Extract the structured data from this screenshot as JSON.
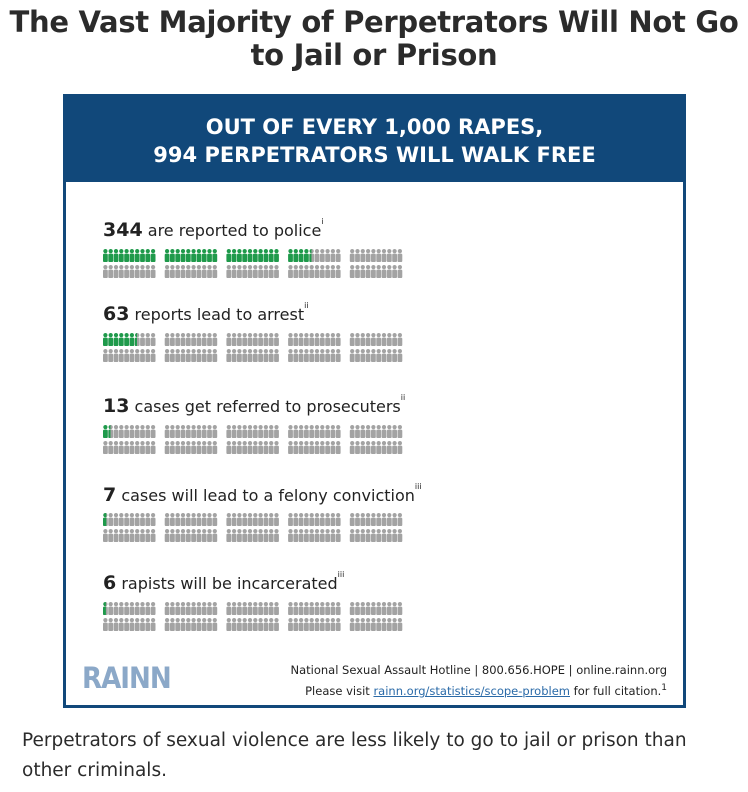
{
  "title": "The Vast Majority of Perpetrators Will Not Go to Jail or Prison",
  "infographic": {
    "header": {
      "line1": "OUT OF EVERY 1,000 RAPES,",
      "line2": "994 PERPETRATORS WILL WALK FREE"
    },
    "rows": [
      {
        "number": "344",
        "text": "are reported to police",
        "note": "i"
      },
      {
        "number": "63",
        "text": "reports lead to arrest",
        "note": "ii"
      },
      {
        "number": "13",
        "text": "cases get referred to prosecuters",
        "note": "ii"
      },
      {
        "number": "7",
        "text": "cases will lead to a felony conviction",
        "note": "iii"
      },
      {
        "number": "6",
        "text": "rapists will be incarcerated",
        "note": "iii"
      }
    ],
    "logo": "RAINN",
    "footer": {
      "hotline": "National Sexual Assault Hotline | 800.656.HOPE | online.rainn.org",
      "cite_prefix": "Please visit",
      "cite_link": "rainn.org/statistics/scope-problem",
      "cite_suffix": "for full citation.",
      "cite_note": "1"
    }
  },
  "caption": "Perpetrators of sexual violence are less likely to go to jail or prison than other criminals.",
  "colors": {
    "header_bg": "#11487a",
    "highlight": "#1f9a4b",
    "base": "#a3a3a3"
  },
  "chart_data": {
    "type": "table",
    "title": "OUT OF EVERY 1,000 RAPES, 994 PERPETRATORS WILL WALK FREE",
    "total_per_row": 100,
    "scale": "each icon ≈ 10 cases",
    "categories": [
      "are reported to police",
      "reports lead to arrest",
      "cases get referred to prosecuters",
      "cases will lead to a felony conviction",
      "rapists will be incarcerated"
    ],
    "values": [
      344,
      63,
      13,
      7,
      6
    ],
    "highlighted_icons": [
      34.4,
      6.3,
      1.3,
      0.7,
      0.6
    ]
  }
}
